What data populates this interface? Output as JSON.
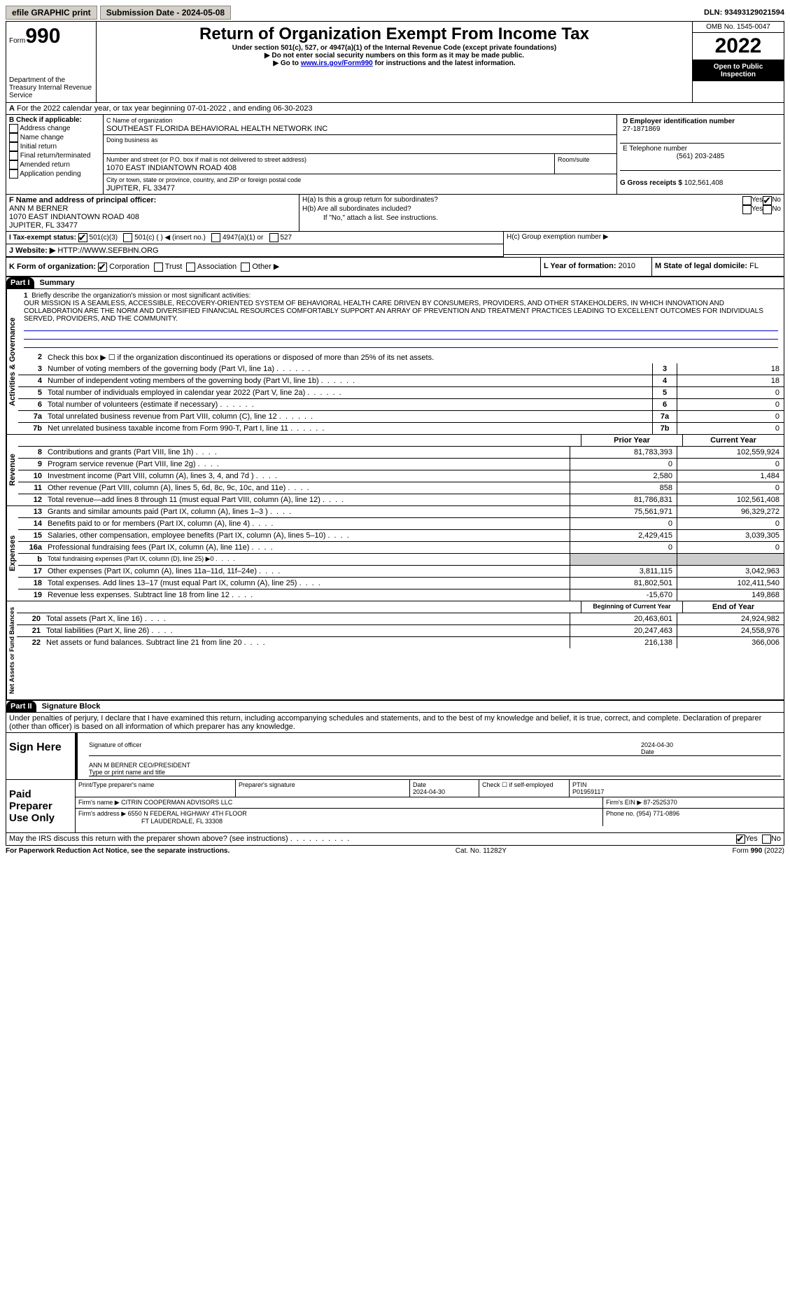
{
  "topbar": {
    "efile": "efile GRAPHIC print",
    "submission": "Submission Date - 2024-05-08",
    "dln_label": "DLN:",
    "dln": "93493129021594"
  },
  "header": {
    "form_label": "Form",
    "form_num": "990",
    "dept": "Department of the Treasury Internal Revenue Service",
    "title": "Return of Organization Exempt From Income Tax",
    "sub1": "Under section 501(c), 527, or 4947(a)(1) of the Internal Revenue Code (except private foundations)",
    "sub2": "▶ Do not enter social security numbers on this form as it may be made public.",
    "sub3_pre": "▶ Go to ",
    "sub3_link": "www.irs.gov/Form990",
    "sub3_post": " for instructions and the latest information.",
    "omb": "OMB No. 1545-0047",
    "year": "2022",
    "open": "Open to Public Inspection"
  },
  "rowA": {
    "a": "A",
    "text": "For the 2022 calendar year, or tax year beginning 07-01-2022    , and ending 06-30-2023"
  },
  "secB": {
    "hdr": "B Check if applicable:",
    "items": [
      "Address change",
      "Name change",
      "Initial return",
      "Final return/terminated",
      "Amended return",
      "Application pending"
    ]
  },
  "secC": {
    "name_hdr": "C Name of organization",
    "name": "SOUTHEAST FLORIDA BEHAVIORAL HEALTH NETWORK INC",
    "dba_hdr": "Doing business as",
    "addr_hdr": "Number and street (or P.O. box if mail is not delivered to street address)",
    "room_hdr": "Room/suite",
    "addr": "1070 EAST INDIANTOWN ROAD 408",
    "city_hdr": "City or town, state or province, country, and ZIP or foreign postal code",
    "city": "JUPITER, FL  33477"
  },
  "secD": {
    "hdr": "D Employer identification number",
    "val": "27-1871869"
  },
  "secE": {
    "hdr": "E Telephone number",
    "val": "(561) 203-2485"
  },
  "secG": {
    "hdr": "G Gross receipts $",
    "val": "102,561,408"
  },
  "secF": {
    "hdr": "F  Name and address of principal officer:",
    "name": "ANN M BERNER",
    "addr": "1070 EAST INDIANTOWN ROAD 408",
    "city": "JUPITER, FL  33477"
  },
  "secH": {
    "a": "H(a)  Is this a group return for subordinates?",
    "b": "H(b)  Are all subordinates included?",
    "b_note": "If \"No,\" attach a list. See instructions.",
    "c": "H(c)  Group exemption number ▶",
    "yes": "Yes",
    "no": "No"
  },
  "secI": {
    "hdr": "I    Tax-exempt status:",
    "opts": [
      "501(c)(3)",
      "501(c) (  ) ◀ (insert no.)",
      "4947(a)(1) or",
      "527"
    ]
  },
  "secJ": {
    "hdr": "J   Website: ▶",
    "val": "HTTP://WWW.SEFBHN.ORG"
  },
  "secK": {
    "hdr": "K Form of organization:",
    "opts": [
      "Corporation",
      "Trust",
      "Association",
      "Other ▶"
    ]
  },
  "secL": {
    "hdr": "L Year of formation:",
    "val": "2010"
  },
  "secM": {
    "hdr": "M State of legal domicile:",
    "val": "FL"
  },
  "part1": {
    "label": "Part I",
    "title": "Summary"
  },
  "mission": {
    "num": "1",
    "hdr": "Briefly describe the organization's mission or most significant activities:",
    "text": "OUR MISSION IS A SEAMLESS, ACCESSIBLE, RECOVERY-ORIENTED SYSTEM OF BEHAVIORAL HEALTH CARE DRIVEN BY CONSUMERS, PROVIDERS, AND OTHER STAKEHOLDERS, IN WHICH INNOVATION AND COLLABORATION ARE THE NORM AND DIVERSIFIED FINANCIAL RESOURCES COMFORTABLY SUPPORT AN ARRAY OF PREVENTION AND TREATMENT PRACTICES LEADING TO EXCELLENT OUTCOMES FOR INDIVIDUALS SERVED, PROVIDERS, AND THE COMMUNITY."
  },
  "gov_lines": [
    {
      "n": "2",
      "t": "Check this box ▶ ☐  if the organization discontinued its operations or disposed of more than 25% of its net assets."
    },
    {
      "n": "3",
      "t": "Number of voting members of the governing body (Part VI, line 1a)",
      "b": "3",
      "v": "18"
    },
    {
      "n": "4",
      "t": "Number of independent voting members of the governing body (Part VI, line 1b)",
      "b": "4",
      "v": "18"
    },
    {
      "n": "5",
      "t": "Total number of individuals employed in calendar year 2022 (Part V, line 2a)",
      "b": "5",
      "v": "0"
    },
    {
      "n": "6",
      "t": "Total number of volunteers (estimate if necessary)",
      "b": "6",
      "v": "0"
    },
    {
      "n": "7a",
      "t": "Total unrelated business revenue from Part VIII, column (C), line 12",
      "b": "7a",
      "v": "0"
    },
    {
      "n": "7b",
      "t": "Net unrelated business taxable income from Form 990-T, Part I, line 11",
      "b": "7b",
      "v": "0"
    }
  ],
  "two_col_hdr": {
    "prior": "Prior Year",
    "current": "Current Year"
  },
  "revenue": [
    {
      "n": "8",
      "t": "Contributions and grants (Part VIII, line 1h)",
      "p": "81,783,393",
      "c": "102,559,924"
    },
    {
      "n": "9",
      "t": "Program service revenue (Part VIII, line 2g)",
      "p": "0",
      "c": "0"
    },
    {
      "n": "10",
      "t": "Investment income (Part VIII, column (A), lines 3, 4, and 7d )",
      "p": "2,580",
      "c": "1,484"
    },
    {
      "n": "11",
      "t": "Other revenue (Part VIII, column (A), lines 5, 6d, 8c, 9c, 10c, and 11e)",
      "p": "858",
      "c": "0"
    },
    {
      "n": "12",
      "t": "Total revenue—add lines 8 through 11 (must equal Part VIII, column (A), line 12)",
      "p": "81,786,831",
      "c": "102,561,408"
    }
  ],
  "expenses": [
    {
      "n": "13",
      "t": "Grants and similar amounts paid (Part IX, column (A), lines 1–3 )",
      "p": "75,561,971",
      "c": "96,329,272"
    },
    {
      "n": "14",
      "t": "Benefits paid to or for members (Part IX, column (A), line 4)",
      "p": "0",
      "c": "0"
    },
    {
      "n": "15",
      "t": "Salaries, other compensation, employee benefits (Part IX, column (A), lines 5–10)",
      "p": "2,429,415",
      "c": "3,039,305"
    },
    {
      "n": "16a",
      "t": "Professional fundraising fees (Part IX, column (A), line 11e)",
      "p": "0",
      "c": "0"
    },
    {
      "n": "b",
      "t": "Total fundraising expenses (Part IX, column (D), line 25) ▶0",
      "p": "",
      "c": "",
      "shaded": true
    },
    {
      "n": "17",
      "t": "Other expenses (Part IX, column (A), lines 11a–11d, 11f–24e)",
      "p": "3,811,115",
      "c": "3,042,963"
    },
    {
      "n": "18",
      "t": "Total expenses. Add lines 13–17 (must equal Part IX, column (A), line 25)",
      "p": "81,802,501",
      "c": "102,411,540"
    },
    {
      "n": "19",
      "t": "Revenue less expenses. Subtract line 18 from line 12",
      "p": "-15,670",
      "c": "149,868"
    }
  ],
  "net_hdr": {
    "begin": "Beginning of Current Year",
    "end": "End of Year"
  },
  "netassets": [
    {
      "n": "20",
      "t": "Total assets (Part X, line 16)",
      "p": "20,463,601",
      "c": "24,924,982"
    },
    {
      "n": "21",
      "t": "Total liabilities (Part X, line 26)",
      "p": "20,247,463",
      "c": "24,558,976"
    },
    {
      "n": "22",
      "t": "Net assets or fund balances. Subtract line 21 from line 20",
      "p": "216,138",
      "c": "366,006"
    }
  ],
  "vert": {
    "gov": "Activities & Governance",
    "rev": "Revenue",
    "exp": "Expenses",
    "net": "Net Assets or Fund Balances"
  },
  "part2": {
    "label": "Part II",
    "title": "Signature Block",
    "penalty": "Under penalties of perjury, I declare that I have examined this return, including accompanying schedules and statements, and to the best of my knowledge and belief, it is true, correct, and complete. Declaration of preparer (other than officer) is based on all information of which preparer has any knowledge."
  },
  "sign": {
    "here": "Sign Here",
    "sig_officer": "Signature of officer",
    "date_label": "Date",
    "date": "2024-04-30",
    "name": "ANN M BERNER  CEO/PRESIDENT",
    "type_print": "Type or print name and title"
  },
  "preparer": {
    "label": "Paid Preparer Use Only",
    "print_hdr": "Print/Type preparer's name",
    "sig_hdr": "Preparer's signature",
    "date_hdr": "Date",
    "date": "2024-04-30",
    "check_hdr": "Check ☐ if self-employed",
    "ptin_hdr": "PTIN",
    "ptin": "P01959117",
    "firm_name_hdr": "Firm's name    ▶",
    "firm_name": "CITRIN COOPERMAN ADVISORS LLC",
    "firm_ein_hdr": "Firm's EIN ▶",
    "firm_ein": "87-2525370",
    "firm_addr_hdr": "Firm's address ▶",
    "firm_addr": "6550 N FEDERAL HIGHWAY 4TH FLOOR",
    "firm_city": "FT LAUDERDALE, FL  33308",
    "phone_hdr": "Phone no.",
    "phone": "(954) 771-0896"
  },
  "discuss": {
    "text": "May the IRS discuss this return with the preparer shown above? (see instructions)",
    "yes": "Yes",
    "no": "No"
  },
  "footer": {
    "left": "For Paperwork Reduction Act Notice, see the separate instructions.",
    "mid": "Cat. No. 11282Y",
    "right_pre": "Form ",
    "right_b": "990",
    "right_post": " (2022)"
  }
}
